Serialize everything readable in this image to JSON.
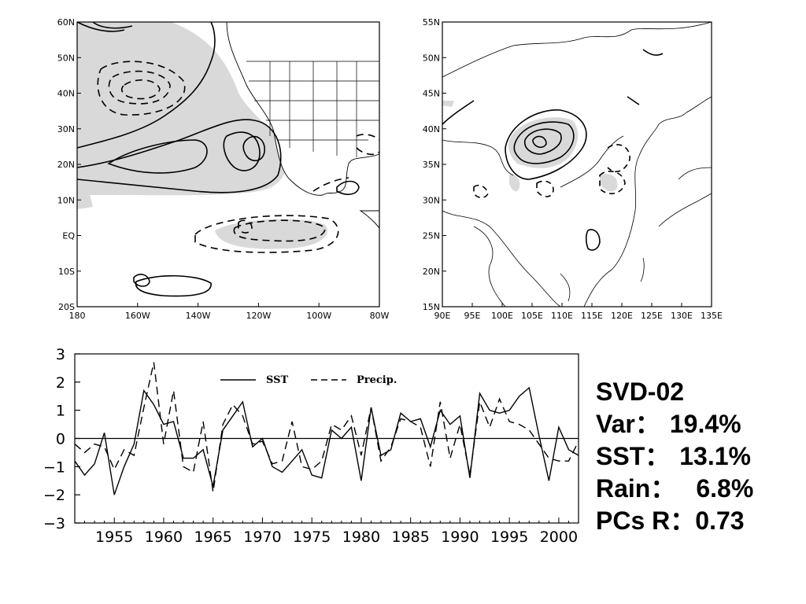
{
  "map_left": {
    "lat_labels": [
      "60N",
      "50N",
      "40N",
      "30N",
      "20N",
      "10N",
      "EQ",
      "10S",
      "20S"
    ],
    "lon_labels": [
      "180",
      "160W",
      "140W",
      "120W",
      "100W",
      "80W"
    ]
  },
  "map_right": {
    "lat_labels": [
      "55N",
      "50N",
      "45N",
      "40N",
      "35N",
      "30N",
      "25N",
      "20N",
      "15N"
    ],
    "lon_labels": [
      "90E",
      "95E",
      "100E",
      "105E",
      "110E",
      "115E",
      "120E",
      "125E",
      "130E",
      "135E"
    ]
  },
  "stats": {
    "title": "SVD-02",
    "var_label": "Var：",
    "var_value": "19.4%",
    "sst_label": "SST：",
    "sst_value": "13.1%",
    "rain_label": "Rain：",
    "rain_value": "6.8%",
    "r_label": "PCs R：",
    "r_value": "0.73"
  },
  "chart_data": {
    "type": "line",
    "x": [
      1951,
      1952,
      1953,
      1954,
      1955,
      1956,
      1957,
      1958,
      1959,
      1960,
      1961,
      1962,
      1963,
      1964,
      1965,
      1966,
      1967,
      1968,
      1969,
      1970,
      1971,
      1972,
      1973,
      1974,
      1975,
      1976,
      1977,
      1978,
      1979,
      1980,
      1981,
      1982,
      1983,
      1984,
      1985,
      1986,
      1987,
      1988,
      1989,
      1990,
      1991,
      1992,
      1993,
      1994,
      1995,
      1996,
      1997,
      1998,
      1999,
      2000,
      2001,
      2002
    ],
    "series": [
      {
        "name": "SST",
        "style": "solid",
        "values": [
          -0.8,
          -1.3,
          -0.9,
          0.2,
          -2.0,
          -1.0,
          -0.2,
          1.7,
          1.2,
          0.5,
          0.6,
          -0.7,
          -0.7,
          -0.4,
          -1.7,
          0.3,
          0.8,
          1.3,
          -0.3,
          0.0,
          -1.0,
          -1.2,
          -0.8,
          -0.4,
          -1.3,
          -1.4,
          0.3,
          0.0,
          0.4,
          -1.5,
          1.1,
          -0.6,
          -0.4,
          0.9,
          0.6,
          0.7,
          -0.3,
          1.0,
          0.5,
          0.8,
          -1.4,
          1.6,
          1.0,
          0.9,
          1.0,
          1.5,
          1.8,
          0.1,
          -1.5,
          0.4,
          -0.4,
          -0.6
        ]
      },
      {
        "name": "Precip.",
        "style": "dashed",
        "values": [
          -0.2,
          -0.5,
          -0.2,
          -0.3,
          -1.1,
          -0.4,
          -0.6,
          1.1,
          2.7,
          -0.2,
          1.7,
          -1.0,
          -1.2,
          0.6,
          -1.9,
          0.5,
          1.2,
          0.8,
          -0.2,
          -0.1,
          -0.9,
          -0.8,
          0.6,
          -1.0,
          -1.1,
          -0.8,
          0.5,
          0.3,
          0.8,
          -0.6,
          1.1,
          -0.8,
          -0.3,
          0.7,
          0.6,
          0.4,
          -1.0,
          1.3,
          -0.7,
          0.5,
          -1.3,
          1.3,
          0.4,
          1.4,
          0.6,
          0.5,
          0.3,
          -0.2,
          -0.7,
          -0.8,
          -0.8,
          -0.1
        ]
      }
    ],
    "ylim": [
      -3,
      3
    ],
    "yticks": [
      3,
      2,
      1,
      0,
      -1,
      -2,
      -3
    ],
    "xlim": [
      1951,
      2002
    ],
    "xticks": [
      1955,
      1960,
      1965,
      1970,
      1975,
      1980,
      1985,
      1990,
      1995,
      2000
    ],
    "zero_line": true,
    "grid": false,
    "legend": "top-center"
  }
}
